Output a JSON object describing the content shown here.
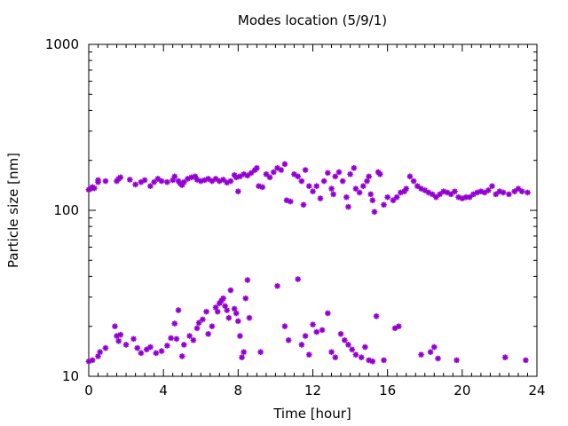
{
  "chart_data": {
    "type": "scatter",
    "title": "Modes location (5/9/1)",
    "xlabel": "Time [hour]",
    "ylabel": "Particle size [nm]",
    "xlim": [
      0,
      24
    ],
    "ylim": [
      10,
      1000
    ],
    "y_scale": "log",
    "x_ticks": [
      0,
      4,
      8,
      12,
      16,
      20,
      24
    ],
    "y_ticks": [
      10,
      100,
      1000
    ],
    "grid": false,
    "legend": "none",
    "marker": "star",
    "color": "#9400d3",
    "series": [
      {
        "points": [
          [
            0.0,
            133
          ],
          [
            0.1,
            135
          ],
          [
            0.2,
            138
          ],
          [
            0.3,
            136
          ],
          [
            0.5,
            148
          ],
          [
            0.5,
            152
          ],
          [
            0.9,
            150
          ],
          [
            1.5,
            150
          ],
          [
            1.6,
            155
          ],
          [
            1.7,
            158
          ],
          [
            2.2,
            153
          ],
          [
            2.5,
            143
          ],
          [
            2.8,
            148
          ],
          [
            3.0,
            152
          ],
          [
            3.3,
            140
          ],
          [
            3.5,
            148
          ],
          [
            3.7,
            155
          ],
          [
            3.9,
            150
          ],
          [
            4.2,
            148
          ],
          [
            4.5,
            152
          ],
          [
            4.6,
            160
          ],
          [
            4.8,
            150
          ],
          [
            4.9,
            145
          ],
          [
            5.0,
            142
          ],
          [
            5.1,
            148
          ],
          [
            5.3,
            155
          ],
          [
            5.5,
            158
          ],
          [
            5.7,
            160
          ],
          [
            5.8,
            153
          ],
          [
            6.0,
            150
          ],
          [
            6.2,
            152
          ],
          [
            6.4,
            155
          ],
          [
            6.6,
            150
          ],
          [
            6.8,
            155
          ],
          [
            7.0,
            150
          ],
          [
            7.2,
            153
          ],
          [
            7.4,
            147
          ],
          [
            7.6,
            150
          ],
          [
            7.8,
            163
          ],
          [
            7.9,
            158
          ],
          [
            8.0,
            130
          ],
          [
            8.1,
            160
          ],
          [
            8.3,
            165
          ],
          [
            8.5,
            162
          ],
          [
            8.7,
            168
          ],
          [
            8.9,
            175
          ],
          [
            9.0,
            180
          ],
          [
            9.1,
            140
          ],
          [
            9.3,
            138
          ],
          [
            9.5,
            165
          ],
          [
            9.7,
            158
          ],
          [
            9.9,
            170
          ],
          [
            10.1,
            180
          ],
          [
            10.3,
            175
          ],
          [
            10.5,
            190
          ],
          [
            10.6,
            115
          ],
          [
            10.8,
            113
          ],
          [
            11.0,
            165
          ],
          [
            11.2,
            160
          ],
          [
            11.4,
            150
          ],
          [
            11.5,
            108
          ],
          [
            11.6,
            175
          ],
          [
            11.8,
            140
          ],
          [
            12.0,
            130
          ],
          [
            12.2,
            140
          ],
          [
            12.4,
            118
          ],
          [
            12.6,
            150
          ],
          [
            12.8,
            168
          ],
          [
            13.0,
            135
          ],
          [
            13.1,
            125
          ],
          [
            13.2,
            160
          ],
          [
            13.4,
            170
          ],
          [
            13.6,
            150
          ],
          [
            13.8,
            120
          ],
          [
            13.9,
            105
          ],
          [
            14.0,
            165
          ],
          [
            14.2,
            180
          ],
          [
            14.3,
            135
          ],
          [
            14.5,
            128
          ],
          [
            14.7,
            140
          ],
          [
            14.9,
            150
          ],
          [
            15.0,
            160
          ],
          [
            15.1,
            125
          ],
          [
            15.2,
            115
          ],
          [
            15.3,
            98
          ],
          [
            15.5,
            170
          ],
          [
            15.6,
            165
          ],
          [
            15.8,
            108
          ],
          [
            16.0,
            120
          ],
          [
            16.3,
            115
          ],
          [
            16.5,
            120
          ],
          [
            16.7,
            128
          ],
          [
            16.9,
            130
          ],
          [
            17.0,
            135
          ],
          [
            17.2,
            160
          ],
          [
            17.4,
            150
          ],
          [
            17.6,
            140
          ],
          [
            17.8,
            135
          ],
          [
            18.0,
            132
          ],
          [
            18.2,
            128
          ],
          [
            18.4,
            125
          ],
          [
            18.6,
            120
          ],
          [
            18.8,
            125
          ],
          [
            19.0,
            130
          ],
          [
            19.2,
            128
          ],
          [
            19.4,
            125
          ],
          [
            19.6,
            130
          ],
          [
            19.8,
            120
          ],
          [
            20.0,
            118
          ],
          [
            20.2,
            120
          ],
          [
            20.4,
            120
          ],
          [
            20.6,
            125
          ],
          [
            20.8,
            128
          ],
          [
            21.0,
            130
          ],
          [
            21.2,
            128
          ],
          [
            21.4,
            132
          ],
          [
            21.6,
            140
          ],
          [
            21.8,
            125
          ],
          [
            22.0,
            130
          ],
          [
            22.2,
            128
          ],
          [
            22.5,
            125
          ],
          [
            22.8,
            130
          ],
          [
            23.0,
            135
          ],
          [
            23.2,
            130
          ],
          [
            23.5,
            128
          ]
        ]
      },
      {
        "points": [
          [
            0.0,
            12.3
          ],
          [
            0.2,
            12.5
          ],
          [
            0.5,
            13.2
          ],
          [
            0.6,
            14.0
          ],
          [
            0.9,
            14.8
          ],
          [
            1.4,
            20.0
          ],
          [
            1.5,
            17.5
          ],
          [
            1.6,
            16.3
          ],
          [
            1.7,
            17.8
          ],
          [
            2.0,
            15.5
          ],
          [
            2.4,
            16.8
          ],
          [
            2.6,
            14.8
          ],
          [
            2.8,
            13.8
          ],
          [
            3.1,
            14.5
          ],
          [
            3.3,
            15.0
          ],
          [
            3.6,
            13.8
          ],
          [
            3.9,
            14.2
          ],
          [
            4.2,
            15.3
          ],
          [
            4.4,
            17.0
          ],
          [
            4.6,
            20.8
          ],
          [
            4.7,
            16.8
          ],
          [
            4.8,
            25.0
          ],
          [
            5.0,
            13.2
          ],
          [
            5.1,
            15.5
          ],
          [
            5.4,
            17.5
          ],
          [
            5.6,
            16.5
          ],
          [
            5.8,
            19.5
          ],
          [
            5.9,
            21.0
          ],
          [
            6.1,
            22.0
          ],
          [
            6.3,
            24.5
          ],
          [
            6.4,
            18.0
          ],
          [
            6.6,
            20.0
          ],
          [
            6.8,
            26.0
          ],
          [
            6.9,
            24.5
          ],
          [
            7.0,
            27.5
          ],
          [
            7.1,
            28.5
          ],
          [
            7.2,
            29.5
          ],
          [
            7.3,
            26.5
          ],
          [
            7.4,
            25.0
          ],
          [
            7.5,
            22.5
          ],
          [
            7.6,
            33.0
          ],
          [
            7.8,
            25.5
          ],
          [
            7.9,
            24.0
          ],
          [
            8.0,
            21.5
          ],
          [
            8.1,
            17.5
          ],
          [
            8.2,
            13.0
          ],
          [
            8.3,
            14.0
          ],
          [
            8.4,
            29.5
          ],
          [
            8.5,
            38.0
          ],
          [
            8.6,
            22.5
          ],
          [
            9.2,
            14.0
          ],
          [
            10.1,
            35.0
          ],
          [
            10.5,
            20.0
          ],
          [
            10.7,
            16.5
          ],
          [
            11.2,
            38.5
          ],
          [
            11.4,
            15.5
          ],
          [
            11.6,
            17.5
          ],
          [
            11.8,
            13.5
          ],
          [
            12.0,
            20.5
          ],
          [
            12.2,
            18.5
          ],
          [
            12.5,
            19.0
          ],
          [
            12.8,
            24.0
          ],
          [
            13.0,
            14.0
          ],
          [
            13.2,
            13.0
          ],
          [
            13.5,
            18.0
          ],
          [
            13.7,
            16.5
          ],
          [
            13.9,
            15.5
          ],
          [
            14.1,
            14.5
          ],
          [
            14.3,
            13.5
          ],
          [
            14.6,
            13.0
          ],
          [
            14.8,
            15.0
          ],
          [
            15.0,
            12.5
          ],
          [
            15.2,
            12.3
          ],
          [
            15.4,
            23.0
          ],
          [
            15.8,
            12.5
          ],
          [
            16.4,
            19.5
          ],
          [
            16.6,
            20.0
          ],
          [
            17.8,
            13.5
          ],
          [
            18.3,
            14.0
          ],
          [
            18.5,
            15.0
          ],
          [
            18.7,
            12.8
          ],
          [
            19.7,
            12.5
          ],
          [
            22.3,
            13.0
          ],
          [
            23.4,
            12.5
          ]
        ]
      }
    ]
  }
}
